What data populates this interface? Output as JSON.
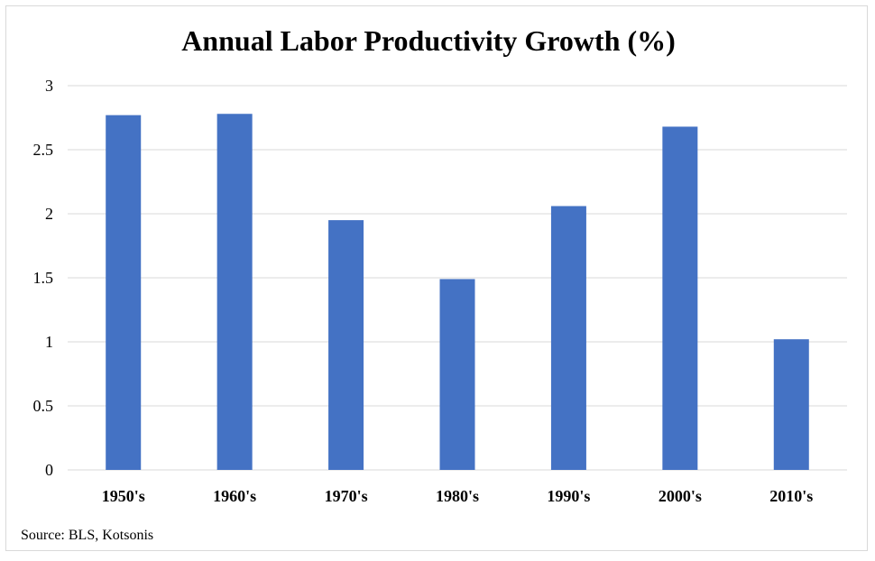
{
  "chart_data": {
    "type": "bar",
    "title": "Annual Labor Productivity Growth (%)",
    "categories": [
      "1950's",
      "1960's",
      "1970's",
      "1980's",
      "1990's",
      "2000's",
      "2010's"
    ],
    "values": [
      2.77,
      2.78,
      1.95,
      1.49,
      2.06,
      2.68,
      1.02
    ],
    "ylim": [
      0,
      3
    ],
    "yticks": [
      "0",
      "0.5",
      "1",
      "1.5",
      "2",
      "2.5",
      "3"
    ],
    "xlabel": "",
    "ylabel": "",
    "grid": true,
    "bar_color": "#4472c4",
    "grid_color": "#d9d9d9"
  },
  "source": "Source: BLS, Kotsonis"
}
